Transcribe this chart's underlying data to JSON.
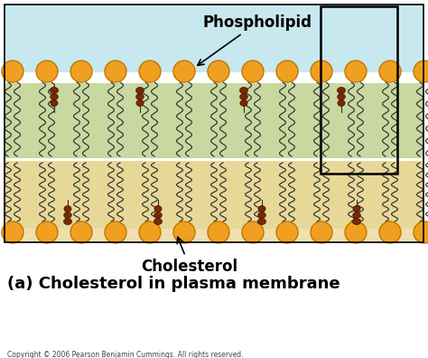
{
  "bg_color": "#ffffff",
  "sky_blue": "#c8e8f0",
  "green_tan": "#c8d8a0",
  "tan_upper": "#e8d898",
  "tan_lower": "#f0e0b0",
  "head_color": "#f0a020",
  "head_edge": "#c07800",
  "chol_color": "#7a2800",
  "chol_edge": "#3a1000",
  "tail_color": "#303030",
  "title": "(a) Cholesterol in plasma membrane",
  "label_phospholipid": "Phospholipid",
  "label_cholesterol": "Cholesterol",
  "copyright": "Copyright © 2006 Pearson Benjamin Cummings. All rights reserved.",
  "title_fontsize": 13,
  "label_fontsize": 12
}
